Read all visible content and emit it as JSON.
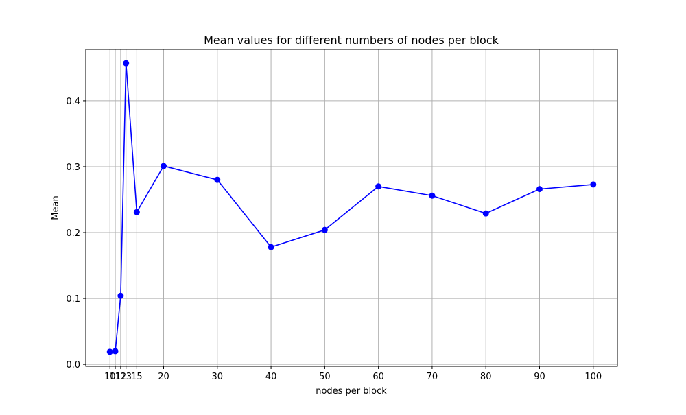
{
  "chart_data": {
    "type": "line",
    "title": "Mean values for different numbers of nodes per block",
    "xlabel": "nodes per block",
    "ylabel": "Mean",
    "x": [
      10,
      11,
      12,
      13,
      15,
      20,
      30,
      40,
      50,
      60,
      70,
      80,
      90,
      100
    ],
    "series": [
      {
        "values": [
          0.019,
          0.02,
          0.104,
          0.457,
          0.231,
          0.301,
          0.28,
          0.178,
          0.204,
          0.27,
          0.256,
          0.229,
          0.266,
          0.273
        ]
      }
    ],
    "x_ticks": [
      10,
      11,
      12,
      13,
      15,
      20,
      30,
      40,
      50,
      60,
      70,
      80,
      90,
      100
    ],
    "x_tick_labels": [
      "10",
      "11",
      "12",
      "13",
      "15",
      "20",
      "30",
      "40",
      "50",
      "60",
      "70",
      "80",
      "90",
      "100"
    ],
    "y_ticks": [
      0.0,
      0.1,
      0.2,
      0.3,
      0.4
    ],
    "y_tick_labels": [
      "0.0",
      "0.1",
      "0.2",
      "0.3",
      "0.4"
    ],
    "xlim": [
      5.5,
      104.5
    ],
    "ylim": [
      -0.003,
      0.478
    ],
    "grid": true,
    "line_color": "#0000ff",
    "marker": "circle",
    "grid_color": "#b0b0b0"
  }
}
